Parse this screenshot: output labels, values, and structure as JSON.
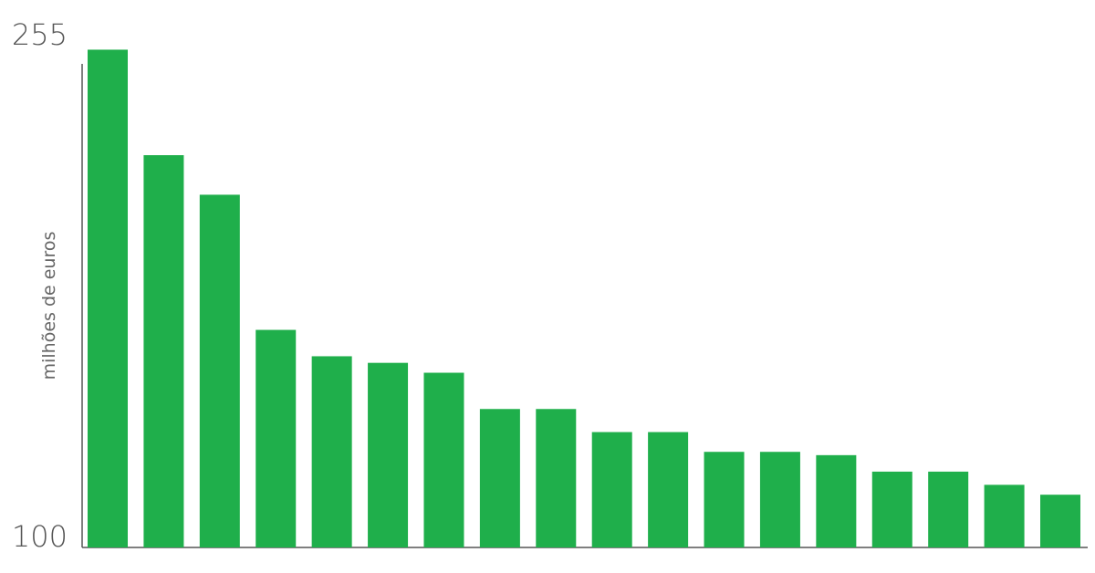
{
  "chart_data": {
    "type": "bar",
    "y_label": "milhões de euros",
    "values": [
      251,
      219,
      207,
      166,
      158,
      156,
      153,
      142,
      142,
      135,
      135,
      129,
      129,
      128,
      123,
      123,
      119,
      116
    ],
    "color": "#1faf4b",
    "ylim": [
      100,
      255
    ],
    "yticks": [
      100,
      255
    ],
    "grid": false
  }
}
